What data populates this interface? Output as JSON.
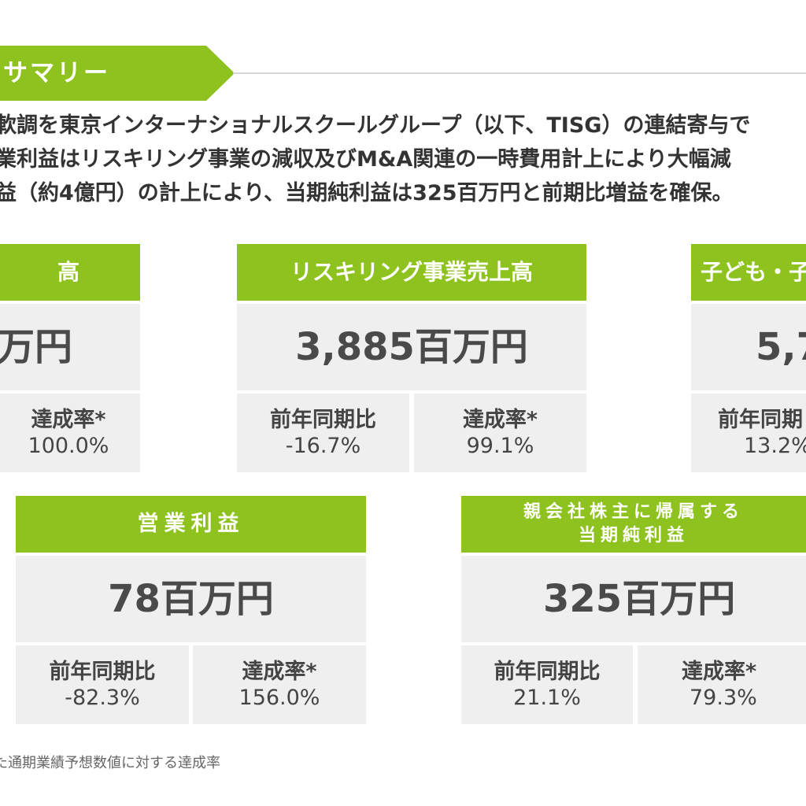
{
  "section": {
    "title": "サマリー"
  },
  "summary": {
    "lines": [
      "軟調を東京インターナショナルスクールグループ（以下、TISG）の連結寄与で",
      "業利益はリスキリング事業の減収及びM&A関連の一時費用計上により大幅減",
      "益（約4億円）の計上により、当期純利益は325百万円と前期比増益を確保。"
    ]
  },
  "cards": {
    "sales_total": {
      "title": "高",
      "value": "万円",
      "metrics": [
        {
          "label": "達成率*",
          "value": "100.0%"
        }
      ]
    },
    "reskilling": {
      "title": "リスキリング事業売上高",
      "value": "3,885百万円",
      "metrics": [
        {
          "label": "前年同期比",
          "value": "-16.7%"
        },
        {
          "label": "達成率*",
          "value": "99.1%"
        }
      ]
    },
    "children": {
      "title": "子ども・子",
      "value": "5,7",
      "metrics": [
        {
          "label": "前年同期",
          "value": "13.2%"
        }
      ]
    },
    "operating_profit": {
      "title": "営業利益",
      "value": "78百万円",
      "metrics": [
        {
          "label": "前年同期比",
          "value": "-82.3%"
        },
        {
          "label": "達成率*",
          "value": "156.0%"
        }
      ]
    },
    "net_profit": {
      "title_line1": "親会社株主に帰属する",
      "title_line2": "当期純利益",
      "value": "325百万円",
      "metrics": [
        {
          "label": "前年同期比",
          "value": "21.1%"
        },
        {
          "label": "達成率*",
          "value": "79.3%"
        }
      ]
    }
  },
  "footnote": {
    "text": "た通期業績予想数値に対する達成率"
  },
  "colors": {
    "accent": "#8dc21f",
    "panel": "#efefef",
    "text": "#3a3a3a"
  }
}
